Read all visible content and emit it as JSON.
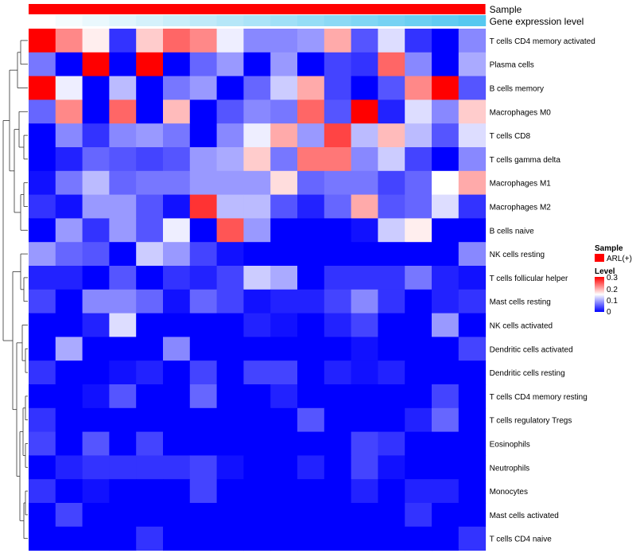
{
  "chart_data": {
    "type": "heatmap",
    "annotations": [
      {
        "name": "Sample",
        "color": "#ff0000"
      },
      {
        "name": "Gene expression level",
        "gradient_from": "#ffffff",
        "gradient_to": "#56c8f0"
      }
    ],
    "rows": [
      "T cells CD4 memory activated",
      "Plasma cells",
      "B cells memory",
      "Macrophages M0",
      "T cells CD8",
      "T cells gamma delta",
      "Macrophages M1",
      "Macrophages M2",
      "B cells naive",
      "NK cells resting",
      "T cells follicular helper",
      "Mast cells resting",
      "NK cells activated",
      "Dendritic cells activated",
      "Dendritic cells resting",
      "T cells CD4 memory resting",
      "T cells regulatory  Tregs",
      "Eosinophils",
      "Neutrophils",
      "Monocytes",
      "Mast cells activated",
      "T cells CD4 naive"
    ],
    "values": [
      [
        0.3,
        0.22,
        0.16,
        0.03,
        0.18,
        0.24,
        0.22,
        0.14,
        0.08,
        0.08,
        0.09,
        0.2,
        0.05,
        0.13,
        0.03,
        0.0,
        0.08
      ],
      [
        0.07,
        0.0,
        0.3,
        0.0,
        0.3,
        0.0,
        0.06,
        0.09,
        0.0,
        0.09,
        0.0,
        0.04,
        0.03,
        0.24,
        0.08,
        0.0,
        0.1
      ],
      [
        0.3,
        0.14,
        0.0,
        0.11,
        0.0,
        0.07,
        0.09,
        0.0,
        0.06,
        0.12,
        0.2,
        0.04,
        0.0,
        0.05,
        0.22,
        0.3,
        0.05
      ],
      [
        0.06,
        0.22,
        0.0,
        0.24,
        0.0,
        0.19,
        0.0,
        0.05,
        0.08,
        0.07,
        0.24,
        0.05,
        0.3,
        0.02,
        0.13,
        0.08,
        0.18
      ],
      [
        0.0,
        0.08,
        0.03,
        0.08,
        0.09,
        0.07,
        0.0,
        0.08,
        0.14,
        0.2,
        0.09,
        0.26,
        0.11,
        0.19,
        0.11,
        0.05,
        0.13
      ],
      [
        0.0,
        0.02,
        0.06,
        0.05,
        0.04,
        0.05,
        0.09,
        0.1,
        0.18,
        0.07,
        0.23,
        0.23,
        0.08,
        0.12,
        0.04,
        0.0,
        0.08
      ],
      [
        0.01,
        0.07,
        0.11,
        0.06,
        0.07,
        0.07,
        0.09,
        0.09,
        0.09,
        0.17,
        0.06,
        0.07,
        0.07,
        0.04,
        0.06,
        0.15,
        0.2
      ],
      [
        0.03,
        0.01,
        0.09,
        0.09,
        0.05,
        0.01,
        0.27,
        0.11,
        0.11,
        0.05,
        0.02,
        0.06,
        0.2,
        0.05,
        0.06,
        0.13,
        0.03
      ],
      [
        0.0,
        0.09,
        0.03,
        0.09,
        0.05,
        0.14,
        0.0,
        0.25,
        0.09,
        0.0,
        0.0,
        0.0,
        0.01,
        0.12,
        0.16,
        0.0,
        0.0
      ],
      [
        0.09,
        0.06,
        0.05,
        0.0,
        0.12,
        0.09,
        0.04,
        0.01,
        0.0,
        0.0,
        0.0,
        0.0,
        0.0,
        0.0,
        0.0,
        0.0,
        0.08
      ],
      [
        0.02,
        0.02,
        0.0,
        0.05,
        0.0,
        0.03,
        0.02,
        0.04,
        0.12,
        0.1,
        0.0,
        0.03,
        0.03,
        0.03,
        0.07,
        0.02,
        0.01
      ],
      [
        0.04,
        0.0,
        0.08,
        0.08,
        0.06,
        0.01,
        0.06,
        0.04,
        0.01,
        0.02,
        0.02,
        0.04,
        0.08,
        0.03,
        0.0,
        0.02,
        0.03
      ],
      [
        0.0,
        0.0,
        0.02,
        0.13,
        0.0,
        0.0,
        0.0,
        0.0,
        0.02,
        0.01,
        0.0,
        0.02,
        0.04,
        0.0,
        0.0,
        0.09,
        0.0
      ],
      [
        0.0,
        0.1,
        0.0,
        0.0,
        0.0,
        0.08,
        0.0,
        0.0,
        0.0,
        0.0,
        0.0,
        0.0,
        0.01,
        0.0,
        0.0,
        0.0,
        0.04
      ],
      [
        0.03,
        0.0,
        0.0,
        0.01,
        0.02,
        0.0,
        0.04,
        0.0,
        0.04,
        0.04,
        0.0,
        0.02,
        0.01,
        0.02,
        0.0,
        0.0,
        0.0
      ],
      [
        0.0,
        0.0,
        0.01,
        0.05,
        0.0,
        0.0,
        0.06,
        0.0,
        0.0,
        0.02,
        0.0,
        0.0,
        0.0,
        0.0,
        0.0,
        0.04,
        0.0
      ],
      [
        0.03,
        0.0,
        0.0,
        0.0,
        0.0,
        0.0,
        0.0,
        0.0,
        0.0,
        0.0,
        0.05,
        0.0,
        0.0,
        0.0,
        0.02,
        0.06,
        0.0
      ],
      [
        0.04,
        0.0,
        0.05,
        0.0,
        0.04,
        0.0,
        0.0,
        0.0,
        0.0,
        0.0,
        0.0,
        0.0,
        0.04,
        0.03,
        0.0,
        0.0,
        0.0
      ],
      [
        0.0,
        0.02,
        0.03,
        0.03,
        0.03,
        0.03,
        0.04,
        0.01,
        0.0,
        0.0,
        0.02,
        0.0,
        0.04,
        0.01,
        0.0,
        0.0,
        0.0
      ],
      [
        0.03,
        0.0,
        0.01,
        0.0,
        0.0,
        0.0,
        0.04,
        0.0,
        0.0,
        0.0,
        0.0,
        0.0,
        0.02,
        0.0,
        0.02,
        0.02,
        0.0
      ],
      [
        0.0,
        0.04,
        0.0,
        0.0,
        0.0,
        0.0,
        0.0,
        0.0,
        0.0,
        0.0,
        0.0,
        0.0,
        0.0,
        0.0,
        0.03,
        0.0,
        0.0
      ],
      [
        0.0,
        0.0,
        0.0,
        0.0,
        0.03,
        0.0,
        0.0,
        0.0,
        0.0,
        0.0,
        0.0,
        0.0,
        0.0,
        0.0,
        0.0,
        0.0,
        0.03
      ]
    ],
    "color_scale": {
      "min": 0,
      "mid": 0.15,
      "max": 0.3,
      "low": "#0000ff",
      "midColor": "#ffffff",
      "high": "#ff0000"
    },
    "legend": {
      "sample_title": "Sample",
      "sample_entry": "ARL(+)",
      "level_title": "Level",
      "level_ticks": [
        "0.3",
        "0.2",
        "0.1",
        "0"
      ],
      "placement": "right"
    },
    "row_dendrogram": true
  }
}
